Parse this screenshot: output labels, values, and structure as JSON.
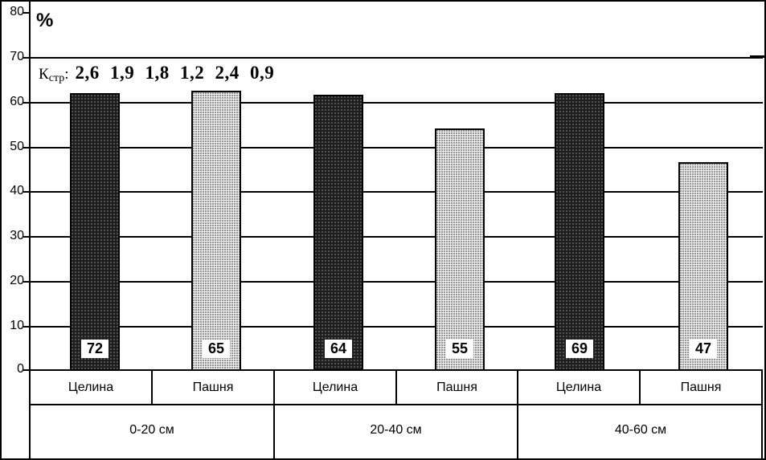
{
  "chart_data": {
    "type": "bar",
    "title": "",
    "ylabel": "%",
    "percent_symbol": "%",
    "annotation": {
      "k": "К",
      "k_sub": "стр",
      "colon": ":",
      "values": "2,6 1,9 1,8 1,2 2,4 0,9"
    },
    "ylim": [
      0,
      80
    ],
    "grid": true,
    "legend_position": "none",
    "y_ticks": [
      "80",
      "70",
      "60",
      "50",
      "40",
      "30",
      "20",
      "10",
      "0"
    ],
    "groups": [
      "0-20 см",
      "20-40 см",
      "40-60 см"
    ],
    "series": [
      {
        "name": "Целина",
        "values": [
          72,
          64,
          69
        ],
        "pattern": "dark"
      },
      {
        "name": "Пашня",
        "values": [
          65,
          55,
          47
        ],
        "pattern": "light-dotted"
      }
    ],
    "bars": [
      {
        "x_label": "Целина",
        "group": "0-20 см",
        "value": 72,
        "pattern": "dark",
        "shown_height": 62
      },
      {
        "x_label": "Пашня",
        "group": "0-20 см",
        "value": 65,
        "pattern": "light",
        "shown_height": 62.5
      },
      {
        "x_label": "Целина",
        "group": "20-40 см",
        "value": 64,
        "pattern": "dark",
        "shown_height": 61.5
      },
      {
        "x_label": "Пашня",
        "group": "20-40 см",
        "value": 55,
        "pattern": "light",
        "shown_height": 54
      },
      {
        "x_label": "Целина",
        "group": "40-60 см",
        "value": 69,
        "pattern": "dark",
        "shown_height": 62
      },
      {
        "x_label": "Пашня",
        "group": "40-60 см",
        "value": 47,
        "pattern": "light",
        "shown_height": 46.5
      }
    ]
  },
  "colors": {
    "bar_dark": "#1e1e1e",
    "bar_light_base": "#f4f4f4",
    "bar_light_dot": "#8c8c8c",
    "grid": "#000000",
    "background": "#ffffff"
  }
}
